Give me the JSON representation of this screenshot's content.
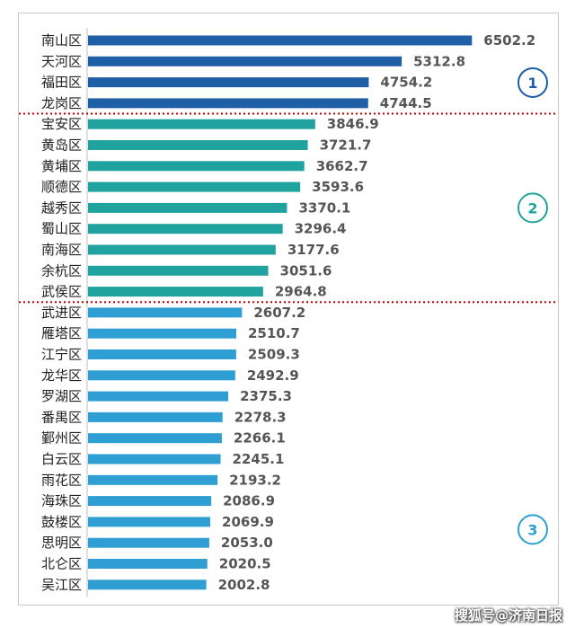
{
  "chart_data": {
    "type": "bar",
    "orientation": "horizontal",
    "categories": [
      "南山区",
      "天河区",
      "福田区",
      "龙岗区",
      "宝安区",
      "黄岛区",
      "黄埔区",
      "顺德区",
      "越秀区",
      "蜀山区",
      "南海区",
      "余杭区",
      "武侯区",
      "武进区",
      "雁塔区",
      "江宁区",
      "龙华区",
      "罗湖区",
      "番禺区",
      "鄞州区",
      "白云区",
      "雨花区",
      "海珠区",
      "鼓楼区",
      "思明区",
      "北仑区",
      "吴江区"
    ],
    "values": [
      6502.2,
      5312.8,
      4754.2,
      4744.5,
      3846.9,
      3721.7,
      3662.7,
      3593.6,
      3370.1,
      3296.4,
      3177.6,
      3051.6,
      2964.8,
      2607.2,
      2510.7,
      2509.3,
      2492.9,
      2375.3,
      2278.3,
      2266.1,
      2245.1,
      2193.2,
      2086.9,
      2069.9,
      2053.0,
      2020.5,
      2002.8
    ],
    "value_labels": [
      "6502.2",
      "5312.8",
      "4754.2",
      "4744.5",
      "3846.9",
      "3721.7",
      "3662.7",
      "3593.6",
      "3370.1",
      "3296.4",
      "3177.6",
      "3051.6",
      "2964.8",
      "2607.2",
      "2510.7",
      "2509.3",
      "2492.9",
      "2375.3",
      "2278.3",
      "2266.1",
      "2245.1",
      "2193.2",
      "2086.9",
      "2069.9",
      "2053.0",
      "2020.5",
      "2002.8"
    ],
    "groups": [
      {
        "label": "1",
        "start": 0,
        "end": 3,
        "color": "#1f5fa6"
      },
      {
        "label": "2",
        "start": 4,
        "end": 12,
        "color": "#20a39e"
      },
      {
        "label": "3",
        "start": 13,
        "end": 26,
        "color": "#2f9fd3"
      }
    ],
    "xlim": [
      0,
      7000
    ],
    "grid": false,
    "legend": "none",
    "separator_color": "#c00000"
  },
  "watermark": "搜狐号@济南日报"
}
